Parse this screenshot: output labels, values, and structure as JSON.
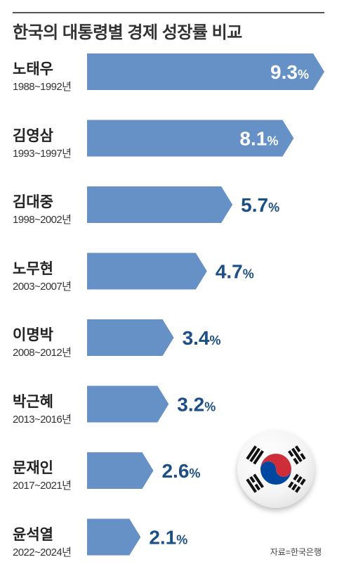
{
  "title": "한국의 대통령별 경제 성장률 비교",
  "source": "자료=한국은행",
  "colors": {
    "bar": "#6591c7",
    "label_on_bar": "#ffffff",
    "label_off_bar": "#1c4f86",
    "flag_red": "#cd2e3a",
    "flag_blue": "#0047a0",
    "flag_black": "#111111"
  },
  "chart_data": {
    "type": "bar",
    "orientation": "horizontal",
    "value_suffix": "%",
    "categories": [
      {
        "name": "노태우",
        "years": "1988~1992년",
        "value": 9.3
      },
      {
        "name": "김영삼",
        "years": "1993~1997년",
        "value": 8.1
      },
      {
        "name": "김대중",
        "years": "1998~2002년",
        "value": 5.7
      },
      {
        "name": "노무현",
        "years": "2003~2007년",
        "value": 4.7
      },
      {
        "name": "이명박",
        "years": "2008~2012년",
        "value": 3.4
      },
      {
        "name": "박근혜",
        "years": "2013~2016년",
        "value": 3.2
      },
      {
        "name": "문재인",
        "years": "2017~2021년",
        "value": 2.6
      },
      {
        "name": "윤석열",
        "years": "2022~2024년",
        "value": 2.1
      }
    ],
    "values": [
      9.3,
      8.1,
      5.7,
      4.7,
      3.4,
      3.2,
      2.6,
      2.1
    ],
    "labels": [
      "9.3%",
      "8.1%",
      "5.7%",
      "4.7%",
      "3.4%",
      "3.2%",
      "2.6%",
      "2.1%"
    ],
    "grid": false,
    "legend": "none"
  },
  "decoration": {
    "flag_icon": "korean-flag-taegukgi"
  }
}
